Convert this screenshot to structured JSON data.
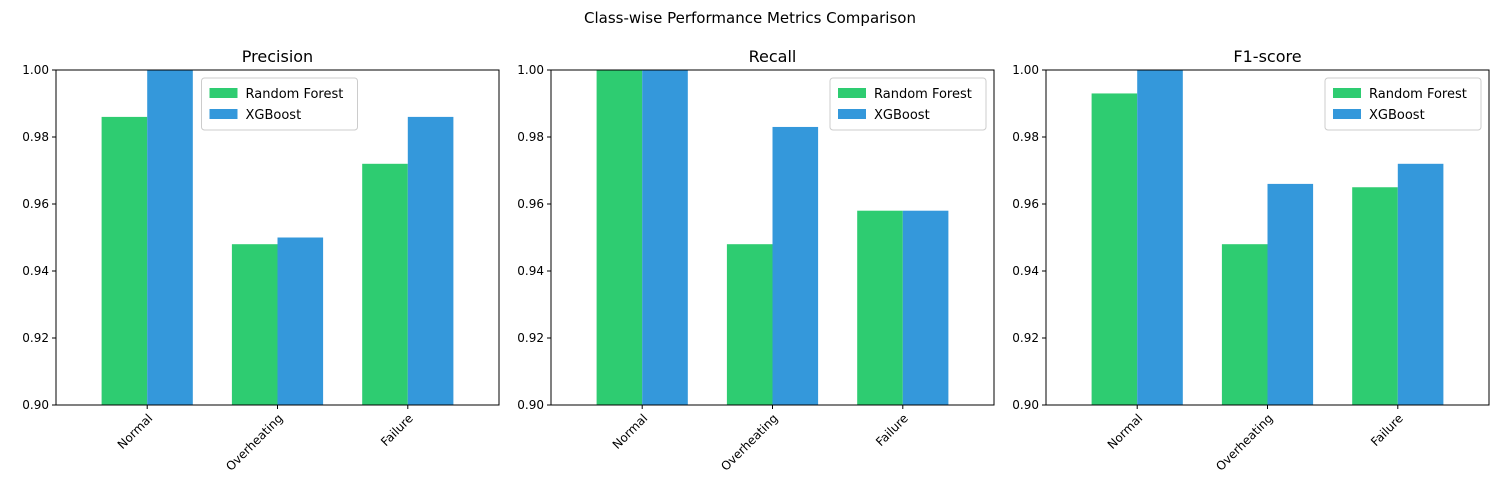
{
  "suptitle": "Class-wise Performance Metrics Comparison",
  "legend_labels": [
    "Random Forest",
    "XGBoost"
  ],
  "colors": {
    "random_forest": "#2ecc71",
    "xgboost": "#3498db"
  },
  "chart_data": [
    {
      "type": "bar",
      "title": "Precision",
      "categories": [
        "Normal",
        "Overheating",
        "Failure"
      ],
      "ylim": [
        0.9,
        1.0
      ],
      "yticks": [
        "0.90",
        "0.92",
        "0.94",
        "0.96",
        "0.98",
        "1.00"
      ],
      "legend": "upper center",
      "series": [
        {
          "name": "Random Forest",
          "values": [
            0.986,
            0.948,
            0.972
          ]
        },
        {
          "name": "XGBoost",
          "values": [
            1.0,
            0.95,
            0.986
          ]
        }
      ]
    },
    {
      "type": "bar",
      "title": "Recall",
      "categories": [
        "Normal",
        "Overheating",
        "Failure"
      ],
      "ylim": [
        0.9,
        1.0
      ],
      "yticks": [
        "0.90",
        "0.92",
        "0.94",
        "0.96",
        "0.98",
        "1.00"
      ],
      "legend": "upper right",
      "series": [
        {
          "name": "Random Forest",
          "values": [
            1.0,
            0.948,
            0.958
          ]
        },
        {
          "name": "XGBoost",
          "values": [
            1.0,
            0.983,
            0.958
          ]
        }
      ]
    },
    {
      "type": "bar",
      "title": "F1-score",
      "categories": [
        "Normal",
        "Overheating",
        "Failure"
      ],
      "ylim": [
        0.9,
        1.0
      ],
      "yticks": [
        "0.90",
        "0.92",
        "0.94",
        "0.96",
        "0.98",
        "1.00"
      ],
      "legend": "upper right",
      "series": [
        {
          "name": "Random Forest",
          "values": [
            0.993,
            0.948,
            0.965
          ]
        },
        {
          "name": "XGBoost",
          "values": [
            1.0,
            0.966,
            0.972
          ]
        }
      ]
    }
  ]
}
